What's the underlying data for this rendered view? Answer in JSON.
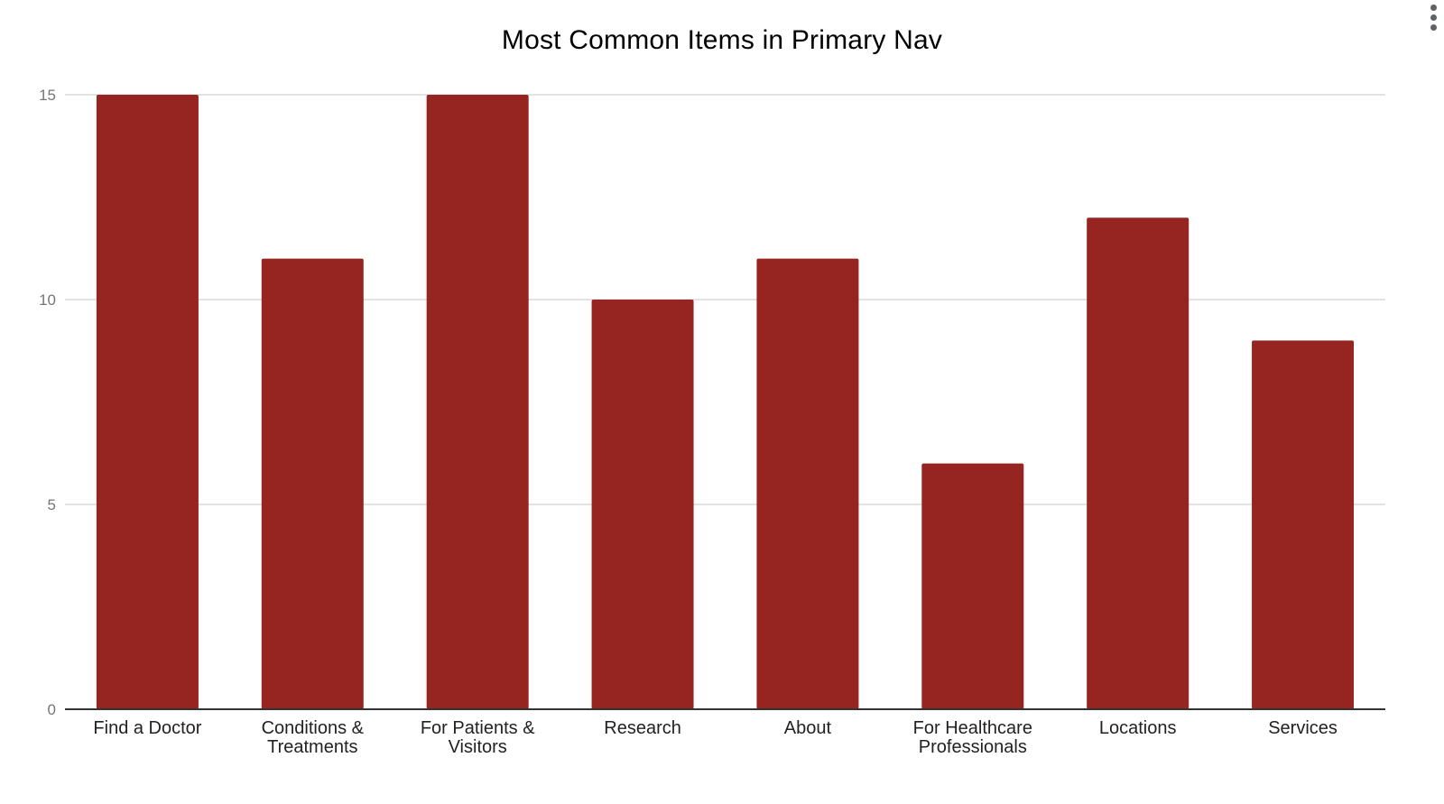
{
  "chart_data": {
    "type": "bar",
    "title": "Most Common Items in Primary Nav",
    "xlabel": "",
    "ylabel": "",
    "categories": [
      [
        "Find a Doctor"
      ],
      [
        "Conditions &",
        "Treatments"
      ],
      [
        "For Patients &",
        "Visitors"
      ],
      [
        "Research"
      ],
      [
        "About"
      ],
      [
        "For Healthcare",
        "Professionals"
      ],
      [
        "Locations"
      ],
      [
        "Services"
      ]
    ],
    "values": [
      15,
      11,
      15,
      10,
      11,
      6,
      12,
      9
    ],
    "ylim": [
      0,
      15
    ],
    "yticks": [
      0,
      5,
      10,
      15
    ],
    "grid": true,
    "legend": "none",
    "bar_color": "#962521",
    "gridline_color": "#d9d9d9",
    "axis_color": "#333333",
    "tick_label_color": "#757575"
  },
  "menu": {
    "icon": "more-vert-icon"
  }
}
